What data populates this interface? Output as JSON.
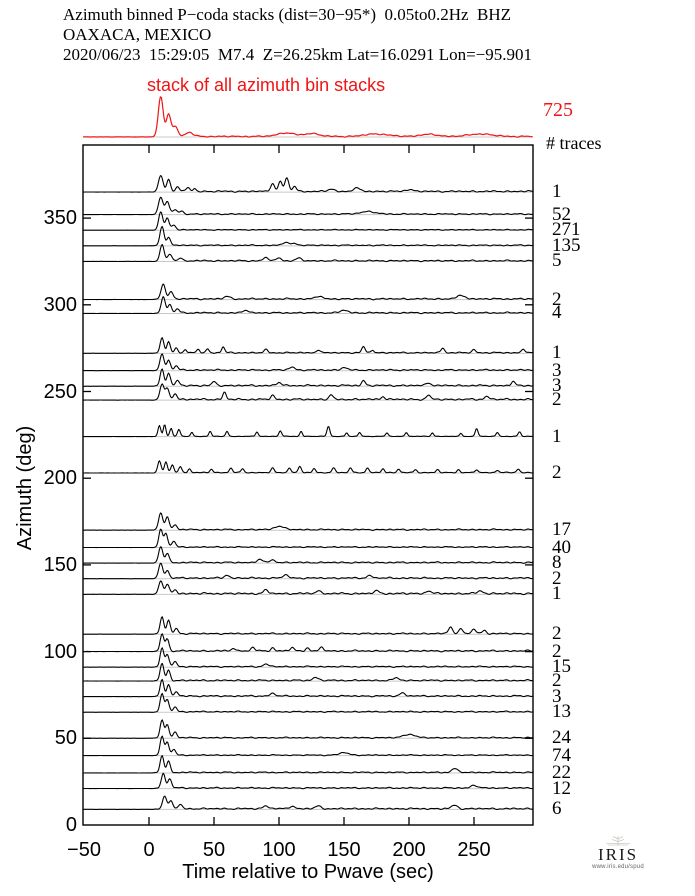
{
  "header": {
    "line1": "Azimuth binned P−coda stacks (dist=30−95*)  0.05to0.2Hz  BHZ",
    "line2": "OAXACA, MEXICO",
    "line3": "2020/06/23  15:29:05  M7.4  Z=26.25km Lat=16.0291 Lon=−95.901"
  },
  "stack": {
    "label": "stack of all azimuth bin stacks",
    "total": "725"
  },
  "traces_header": "# traces",
  "colors": {
    "trace": "#000000",
    "stack_red": "#f01414",
    "baseline_gray": "#c8c8c8",
    "frame": "#000000"
  },
  "logo": {
    "text": "IRIS",
    "url": "www.iris.edu/spud"
  },
  "chart_data": {
    "type": "line",
    "title": "Azimuth binned P−coda stacks (dist=30−95*) 0.05to0.2Hz BHZ — OAXACA, MEXICO",
    "xlabel": "Time relative to Pwave (sec)",
    "ylabel": "Azimuth (deg)",
    "xlim": [
      -50,
      295
    ],
    "ylim": [
      0,
      392
    ],
    "x_tick_values": [
      -50,
      0,
      50,
      100,
      150,
      200,
      250
    ],
    "x_tick_labels": [
      "−50",
      "0",
      "50",
      "100",
      "150",
      "200",
      "250"
    ],
    "y_tick_values": [
      0,
      50,
      100,
      150,
      200,
      250,
      300,
      350
    ],
    "y_tick_labels": [
      "0",
      "50",
      "100",
      "150",
      "200",
      "250",
      "300",
      "350"
    ],
    "grid": false,
    "legend": "none",
    "stack_trace": {
      "label": "stack of all azimuth bin stacks",
      "n_traces": 725,
      "coda": 1.3,
      "seed": 7,
      "peaks": [
        [
          9,
          40,
          2.6
        ],
        [
          15,
          22,
          2.4
        ],
        [
          20,
          10,
          3
        ],
        [
          31,
          4,
          4
        ],
        [
          105,
          3.5,
          9
        ],
        [
          125,
          3,
          8
        ],
        [
          175,
          2.5,
          12
        ],
        [
          215,
          2,
          10
        ],
        [
          255,
          2.5,
          12
        ]
      ]
    },
    "traces": [
      {
        "az": 365,
        "count": 1,
        "seed": 11,
        "coda": 1.6,
        "peaks": [
          [
            9,
            16,
            2.4
          ],
          [
            15,
            12,
            2.0
          ],
          [
            22,
            5,
            2
          ],
          [
            30,
            4,
            1.8
          ],
          [
            35,
            3,
            1.5
          ],
          [
            95,
            8,
            2.2
          ],
          [
            101,
            10,
            2
          ],
          [
            106,
            13,
            2.2
          ],
          [
            112,
            5,
            2
          ],
          [
            140,
            2.5,
            3
          ],
          [
            160,
            3,
            4
          ],
          [
            200,
            2,
            4
          ]
        ]
      },
      {
        "az": 352,
        "count": 52,
        "seed": 22,
        "coda": 1.3,
        "peaks": [
          [
            9,
            17,
            2.4
          ],
          [
            14,
            13,
            2.2
          ],
          [
            20,
            4,
            2.5
          ],
          [
            25,
            3,
            2
          ],
          [
            168,
            2.5,
            8
          ]
        ]
      },
      {
        "az": 343,
        "count": 271,
        "seed": 33,
        "coda": 1.0,
        "peaks": [
          [
            9,
            18,
            2.2
          ],
          [
            14,
            12,
            2
          ],
          [
            19,
            5,
            2.2
          ]
        ]
      },
      {
        "az": 334,
        "count": 135,
        "seed": 44,
        "coda": 1.2,
        "peaks": [
          [
            10,
            19,
            2.2
          ],
          [
            15,
            8,
            2
          ],
          [
            105,
            2.5,
            4
          ],
          [
            112,
            2,
            3
          ]
        ]
      },
      {
        "az": 325,
        "count": 5,
        "seed": 55,
        "coda": 1.5,
        "peaks": [
          [
            10,
            16,
            2.2
          ],
          [
            16,
            6,
            2.5
          ],
          [
            24,
            3,
            2
          ],
          [
            90,
            3,
            3
          ],
          [
            100,
            2.5,
            3
          ],
          [
            115,
            2.5,
            3
          ]
        ]
      },
      {
        "az": 303,
        "count": 2,
        "seed": 66,
        "coda": 1.6,
        "peaks": [
          [
            11,
            15,
            2.4
          ],
          [
            17,
            7,
            2.2
          ],
          [
            60,
            2.5,
            3
          ],
          [
            130,
            2.5,
            4
          ],
          [
            240,
            3,
            5
          ]
        ]
      },
      {
        "az": 295,
        "count": 4,
        "seed": 77,
        "coda": 1.5,
        "peaks": [
          [
            11,
            16,
            2.2
          ],
          [
            16,
            8,
            2
          ],
          [
            22,
            4,
            2
          ],
          [
            75,
            2.5,
            3
          ],
          [
            150,
            2.5,
            4
          ]
        ]
      },
      {
        "az": 272,
        "count": 1,
        "seed": 88,
        "coda": 1.4,
        "peaks": [
          [
            10,
            15,
            2
          ],
          [
            15,
            11,
            1.8
          ],
          [
            21,
            5,
            1.8
          ],
          [
            28,
            3,
            1.5
          ],
          [
            38,
            3.5,
            1.6
          ],
          [
            45,
            4,
            1.5
          ],
          [
            57,
            6,
            1.6
          ],
          [
            90,
            3,
            2
          ],
          [
            130,
            3,
            2
          ],
          [
            165,
            6,
            1.8
          ],
          [
            172,
            3,
            1.5
          ],
          [
            226,
            5,
            1.8
          ],
          [
            250,
            3,
            2
          ],
          [
            288,
            4,
            1.8
          ]
        ]
      },
      {
        "az": 262,
        "count": 3,
        "seed": 99,
        "coda": 1.5,
        "peaks": [
          [
            10,
            16,
            2.2
          ],
          [
            15,
            10,
            2
          ],
          [
            21,
            4,
            2
          ],
          [
            110,
            3,
            3
          ],
          [
            150,
            2.5,
            3
          ]
        ]
      },
      {
        "az": 253,
        "count": 3,
        "seed": 101,
        "coda": 1.7,
        "peaks": [
          [
            10,
            17,
            2
          ],
          [
            15,
            12,
            2
          ],
          [
            22,
            5,
            2
          ],
          [
            50,
            4,
            2
          ],
          [
            100,
            3,
            2.5
          ],
          [
            165,
            5,
            2
          ],
          [
            215,
            3,
            2.5
          ],
          [
            280,
            4,
            2
          ]
        ]
      },
      {
        "az": 245,
        "count": 2,
        "seed": 112,
        "coda": 1.8,
        "peaks": [
          [
            10,
            15,
            2.2
          ],
          [
            14,
            11,
            2
          ],
          [
            20,
            6,
            2
          ],
          [
            58,
            7,
            1.8
          ],
          [
            95,
            4,
            2
          ],
          [
            140,
            4.5,
            2
          ],
          [
            180,
            3,
            2
          ],
          [
            215,
            4.5,
            2
          ],
          [
            260,
            3,
            2.5
          ]
        ]
      },
      {
        "az": 224,
        "count": 1,
        "seed": 123,
        "coda": 0.5,
        "peaks": [
          [
            8,
            11,
            1.5
          ],
          [
            12,
            12,
            1.4
          ],
          [
            17,
            8,
            1.4
          ],
          [
            23,
            7,
            1.5
          ],
          [
            33,
            4,
            1.3
          ],
          [
            47,
            5,
            1.4
          ],
          [
            60,
            5,
            1.4
          ],
          [
            83,
            4.5,
            1.4
          ],
          [
            101,
            5.5,
            1.5
          ],
          [
            117,
            5,
            1.4
          ],
          [
            138,
            10,
            1.6
          ],
          [
            152,
            3.5,
            1.3
          ],
          [
            162,
            4,
            1.4
          ],
          [
            183,
            3.5,
            1.4
          ],
          [
            198,
            4,
            1.4
          ],
          [
            218,
            3.5,
            1.4
          ],
          [
            240,
            3,
            1.3
          ],
          [
            252,
            8,
            1.5
          ],
          [
            268,
            4,
            1.4
          ],
          [
            285,
            4.5,
            1.5
          ]
        ]
      },
      {
        "az": 203,
        "count": 2,
        "seed": 134,
        "coda": 0.9,
        "peaks": [
          [
            8,
            12,
            1.8
          ],
          [
            13,
            11,
            1.6
          ],
          [
            18,
            8,
            1.6
          ],
          [
            24,
            6,
            1.6
          ],
          [
            31,
            4,
            1.5
          ],
          [
            48,
            3.5,
            1.6
          ],
          [
            63,
            4.5,
            1.7
          ],
          [
            72,
            4,
            1.5
          ],
          [
            95,
            4.5,
            1.7
          ],
          [
            108,
            5,
            1.6
          ],
          [
            116,
            6,
            1.7
          ],
          [
            127,
            4,
            1.6
          ],
          [
            142,
            4.5,
            1.7
          ],
          [
            155,
            5,
            1.6
          ],
          [
            168,
            4.5,
            1.6
          ],
          [
            180,
            4,
            1.6
          ],
          [
            192,
            3.5,
            1.6
          ],
          [
            205,
            3,
            1.6
          ],
          [
            222,
            3,
            1.6
          ],
          [
            238,
            3,
            1.6
          ],
          [
            252,
            3,
            1.6
          ],
          [
            268,
            2.5,
            1.6
          ],
          [
            284,
            3.5,
            1.7
          ]
        ]
      },
      {
        "az": 170,
        "count": 17,
        "seed": 145,
        "coda": 1.4,
        "peaks": [
          [
            9,
            17,
            2.2
          ],
          [
            14,
            13,
            2
          ],
          [
            20,
            5,
            2.2
          ],
          [
            100,
            3.5,
            5
          ]
        ]
      },
      {
        "az": 160,
        "count": 40,
        "seed": 156,
        "coda": 1.2,
        "peaks": [
          [
            9,
            18,
            2
          ],
          [
            13,
            14,
            1.9
          ],
          [
            19,
            6,
            2
          ]
        ]
      },
      {
        "az": 151,
        "count": 8,
        "seed": 167,
        "coda": 1.5,
        "peaks": [
          [
            9,
            16,
            2.2
          ],
          [
            14,
            9,
            2
          ],
          [
            85,
            3,
            3
          ],
          [
            95,
            2.5,
            3
          ]
        ]
      },
      {
        "az": 142,
        "count": 2,
        "seed": 178,
        "coda": 1.6,
        "peaks": [
          [
            9,
            15,
            2.2
          ],
          [
            14,
            8,
            2
          ],
          [
            60,
            3,
            2.5
          ],
          [
            105,
            3,
            3
          ],
          [
            170,
            2.5,
            3
          ]
        ]
      },
      {
        "az": 133,
        "count": 1,
        "seed": 189,
        "coda": 1.9,
        "peaks": [
          [
            9,
            13,
            2.2
          ],
          [
            14,
            9,
            2
          ],
          [
            20,
            4,
            2
          ],
          [
            90,
            3.5,
            2.5
          ],
          [
            130,
            3,
            2.5
          ],
          [
            175,
            2.5,
            3
          ],
          [
            215,
            3,
            2.5
          ],
          [
            255,
            2.5,
            3
          ]
        ]
      },
      {
        "az": 110,
        "count": 2,
        "seed": 190,
        "coda": 1.5,
        "peaks": [
          [
            10,
            17,
            2
          ],
          [
            15,
            13,
            1.9
          ],
          [
            21,
            5,
            2
          ],
          [
            232,
            7,
            2.2
          ],
          [
            240,
            5,
            2
          ],
          [
            250,
            4.5,
            2.2
          ],
          [
            258,
            3.5,
            2
          ]
        ]
      },
      {
        "az": 100,
        "count": 2,
        "seed": 201,
        "coda": 1.6,
        "peaks": [
          [
            10,
            17,
            2
          ],
          [
            14,
            12,
            1.9
          ],
          [
            65,
            3,
            2
          ],
          [
            80,
            3.5,
            2
          ],
          [
            95,
            3,
            2
          ],
          [
            110,
            3.5,
            2
          ],
          [
            122,
            3,
            2
          ],
          [
            133,
            3.5,
            2
          ]
        ]
      },
      {
        "az": 91,
        "count": 15,
        "seed": 212,
        "coda": 1.3,
        "peaks": [
          [
            10,
            19,
            2
          ],
          [
            14,
            12,
            1.9
          ],
          [
            20,
            5,
            2
          ],
          [
            90,
            2.5,
            3
          ]
        ]
      },
      {
        "az": 83,
        "count": 2,
        "seed": 223,
        "coda": 1.5,
        "peaks": [
          [
            10,
            17,
            2
          ],
          [
            15,
            10,
            1.9
          ],
          [
            128,
            3,
            3
          ],
          [
            190,
            2.5,
            3
          ]
        ]
      },
      {
        "az": 74,
        "count": 3,
        "seed": 234,
        "coda": 1.5,
        "peaks": [
          [
            10,
            17,
            2
          ],
          [
            15,
            11,
            1.9
          ],
          [
            21,
            4,
            2
          ],
          [
            95,
            2.5,
            3
          ],
          [
            195,
            3,
            3
          ]
        ]
      },
      {
        "az": 65,
        "count": 13,
        "seed": 245,
        "coda": 1.3,
        "peaks": [
          [
            10,
            18,
            2
          ],
          [
            14,
            12,
            1.9
          ],
          [
            20,
            5,
            2
          ]
        ]
      },
      {
        "az": 50,
        "count": 24,
        "seed": 256,
        "coda": 1.3,
        "peaks": [
          [
            10,
            18,
            2
          ],
          [
            14,
            13,
            1.9
          ],
          [
            20,
            6,
            2
          ],
          [
            200,
            3.5,
            6
          ]
        ]
      },
      {
        "az": 40,
        "count": 74,
        "seed": 267,
        "coda": 1.1,
        "peaks": [
          [
            10,
            19,
            2
          ],
          [
            14,
            13,
            1.9
          ],
          [
            19,
            6,
            2
          ],
          [
            150,
            2.5,
            5
          ]
        ]
      },
      {
        "az": 30,
        "count": 22,
        "seed": 278,
        "coda": 1.3,
        "peaks": [
          [
            10,
            17,
            2
          ],
          [
            15,
            11,
            1.9
          ],
          [
            235,
            4,
            3
          ]
        ]
      },
      {
        "az": 21,
        "count": 12,
        "seed": 289,
        "coda": 1.4,
        "peaks": [
          [
            11,
            15,
            2.1
          ],
          [
            16,
            9,
            2
          ],
          [
            250,
            3,
            3
          ]
        ]
      },
      {
        "az": 9,
        "count": 6,
        "seed": 290,
        "coda": 1.6,
        "peaks": [
          [
            12,
            13,
            2.2
          ],
          [
            17,
            8,
            2
          ],
          [
            24,
            4,
            2
          ],
          [
            90,
            3,
            3
          ],
          [
            110,
            2.5,
            3
          ],
          [
            130,
            2.5,
            3
          ],
          [
            235,
            3.5,
            3
          ]
        ]
      }
    ]
  }
}
